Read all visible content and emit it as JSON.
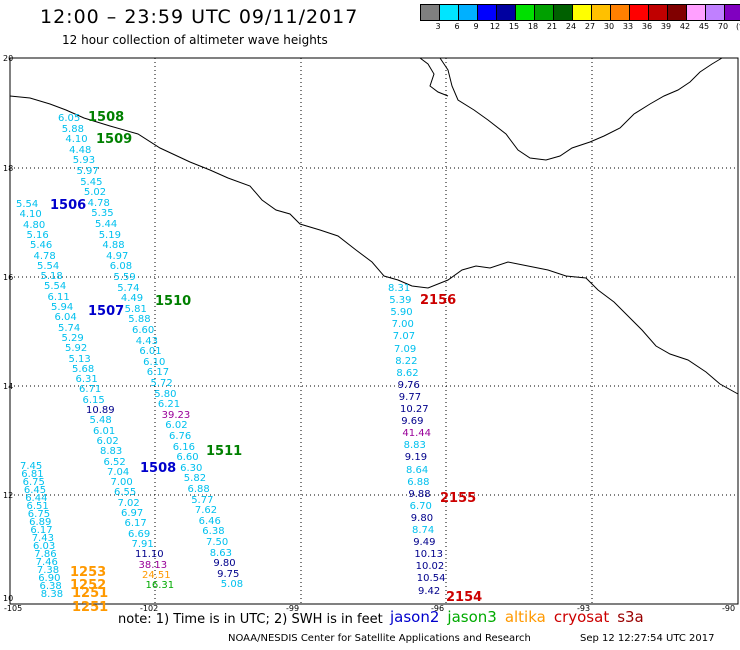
{
  "header": {
    "title": "12:00 – 23:59 UTC 09/11/2017",
    "subtitle": "12 hour collection of altimeter wave heights"
  },
  "colorbar": {
    "colors": [
      "#7f7f7f",
      "#00e5ff",
      "#00b0ff",
      "#0000ff",
      "#0000a0",
      "#00e000",
      "#00a000",
      "#006000",
      "#ffff00",
      "#ffc000",
      "#ff8000",
      "#ff0000",
      "#c00000",
      "#800000",
      "#ffa0ff",
      "#c080ff",
      "#8000c0",
      "#000000"
    ],
    "labels": [
      "3",
      "6",
      "9",
      "12",
      "15",
      "18",
      "21",
      "24",
      "27",
      "30",
      "33",
      "36",
      "39",
      "42",
      "45",
      "70",
      "(ft)"
    ]
  },
  "axes": {
    "y_ticks": [
      "20",
      "18",
      "16",
      "14",
      "12",
      "10"
    ],
    "x_ticks": [
      "-105",
      "-102",
      "-99",
      "-96",
      "-93",
      "-90"
    ]
  },
  "passes": [
    {
      "id": "1508",
      "satellite": "jason3",
      "color": "#008000"
    },
    {
      "id": "1509",
      "satellite": "jason3",
      "color": "#008000"
    },
    {
      "id": "1506",
      "satellite": "jason2",
      "color": "#0000cc"
    },
    {
      "id": "1510",
      "satellite": "jason3",
      "color": "#008000"
    },
    {
      "id": "1507",
      "satellite": "jason2",
      "color": "#0000cc"
    },
    {
      "id": "1511",
      "satellite": "jason3",
      "color": "#008000"
    },
    {
      "id": "1508",
      "satellite": "jason2",
      "color": "#0000cc"
    },
    {
      "id": "2156",
      "satellite": "cryosat",
      "color": "#cc0000"
    },
    {
      "id": "2155",
      "satellite": "cryosat",
      "color": "#cc0000"
    },
    {
      "id": "2154",
      "satellite": "cryosat",
      "color": "#cc0000"
    },
    {
      "id": "1253",
      "satellite": "altika",
      "color": "#ff9900"
    },
    {
      "id": "1252",
      "satellite": "altika",
      "color": "#ff9900"
    },
    {
      "id": "1251",
      "satellite": "altika",
      "color": "#ff9900"
    },
    {
      "id": "1251",
      "satellite": "altika",
      "color": "#ff9900"
    }
  ],
  "tracks": {
    "jason3_a": [
      "6.05",
      "5.88",
      "4.10",
      "4.48",
      "5.93",
      "5.97",
      "5.45",
      "5.02",
      "4.78",
      "5.35",
      "5.44",
      "5.19",
      "4.88",
      "4.97",
      "6.08",
      "5.59",
      "5.74",
      "4.49",
      "5.81",
      "5.88",
      "6.60",
      "4.43",
      "6.01",
      "6.10",
      "6.17",
      "5.72",
      "5.80",
      "6.21",
      "39.23",
      "6.02",
      "6.76",
      "6.16",
      "6.60",
      "6.30",
      "5.82",
      "6.88",
      "5.77",
      "7.62",
      "6.46",
      "6.38",
      "7.50",
      "8.63",
      "9.80",
      "9.75",
      "5.08"
    ],
    "jason2_a": [
      "5.54",
      "4.10",
      "4.80",
      "5.16",
      "5.46",
      "4.78",
      "5.54",
      "5.18",
      "5.54",
      "6.11",
      "5.94",
      "6.04",
      "5.74",
      "5.29",
      "5.92",
      "5.13",
      "5.68",
      "6.31",
      "6.71",
      "6.15",
      "10.89",
      "5.48",
      "6.01",
      "6.02",
      "8.83",
      "6.52",
      "7.04",
      "7.00",
      "6.55",
      "7.02",
      "6.97",
      "6.17",
      "6.69",
      "7.91",
      "11.10",
      "38.13",
      "24.51",
      "16.31"
    ],
    "altika_a": [
      "7.45",
      "6.81",
      "6.75",
      "6.45",
      "6.44",
      "6.51",
      "6.75",
      "6.89",
      "6.17",
      "7.43",
      "6.03",
      "7.86",
      "7.46",
      "7.38",
      "6.90",
      "6.38",
      "8.38"
    ],
    "cryosat": [
      "8.31",
      "5.39",
      "5.90",
      "7.00",
      "7.07",
      "7.09",
      "8.22",
      "8.62",
      "9.76",
      "9.77",
      "10.27",
      "9.69",
      "41.44",
      "8.83",
      "9.19",
      "8.64",
      "6.88",
      "9.88",
      "6.70",
      "9.80",
      "8.74",
      "9.49",
      "10.13",
      "10.02",
      "10.54",
      "9.42"
    ]
  },
  "track_colors": {
    "cyan": "#00c0ee",
    "darkblue": "#00008b",
    "green": "#00aa00",
    "purple": "#990099",
    "orange": "#ff9900"
  },
  "footer": {
    "note": "note:  1) Time is in UTC;  2) SWH is in feet",
    "legend": [
      {
        "label": "jason2",
        "color": "#0000cc"
      },
      {
        "label": "jason3",
        "color": "#00aa00"
      },
      {
        "label": "altika",
        "color": "#ff9900"
      },
      {
        "label": "cryosat",
        "color": "#cc0000"
      },
      {
        "label": "s3a",
        "color": "#990000"
      }
    ],
    "credit": "NOAA/NESDIS Center for Satellite Applications and Research",
    "timestamp": "Sep 12 12:27:54 UTC 2017"
  }
}
